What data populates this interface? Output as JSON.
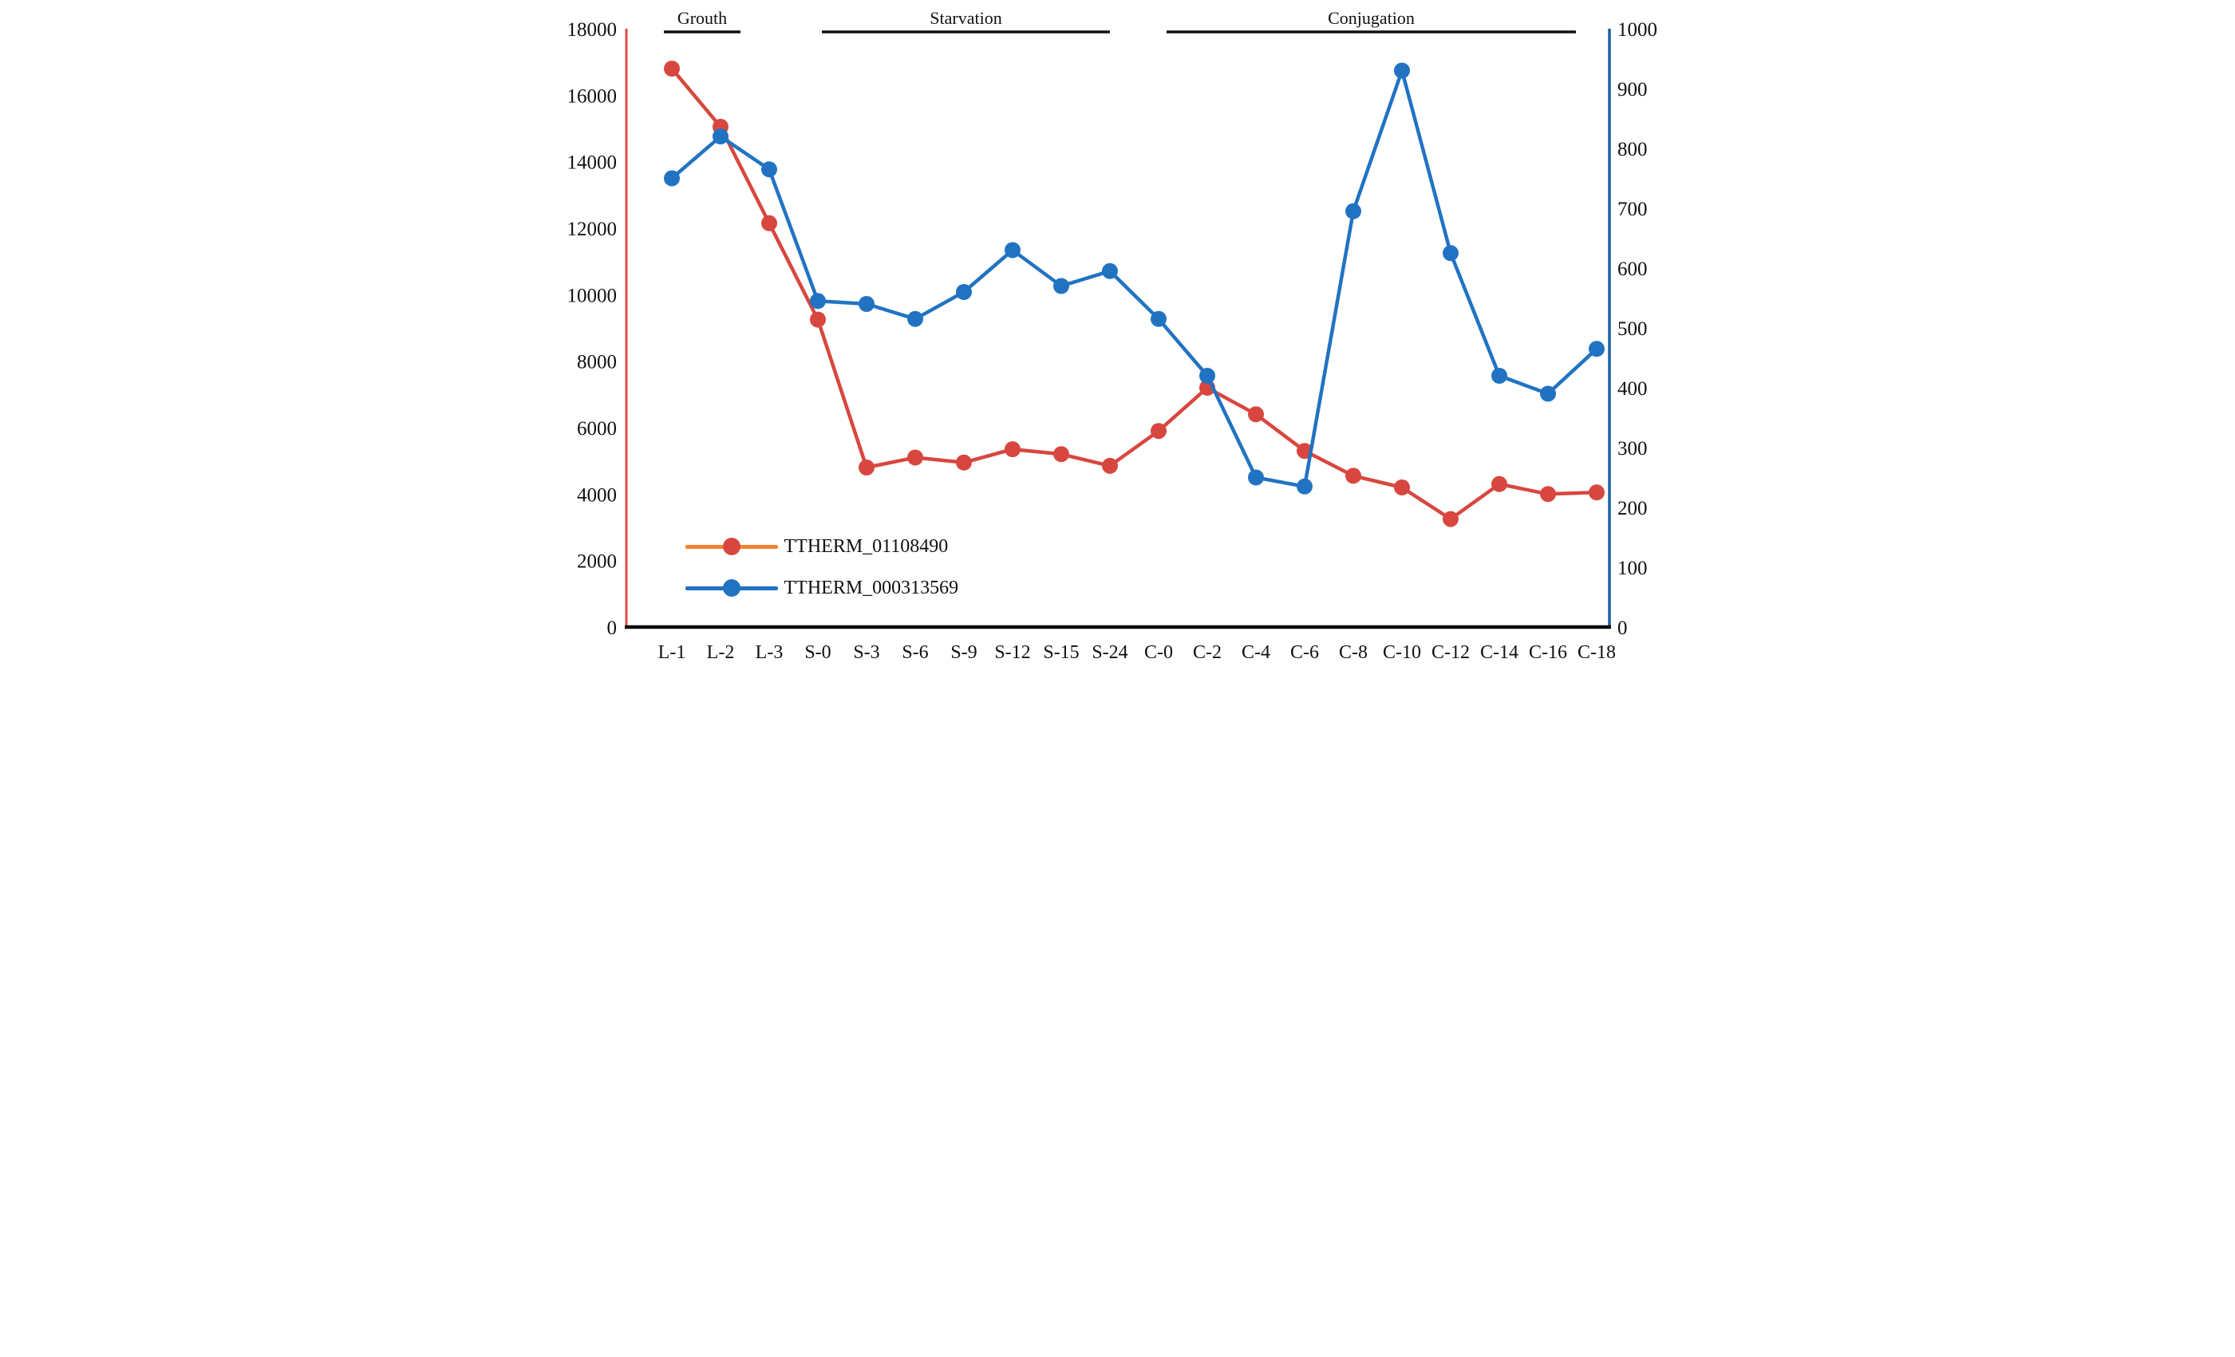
{
  "chart_data": {
    "type": "line",
    "title": "",
    "xlabel": "",
    "ylabel_left": "",
    "ylabel_right": "",
    "grid": false,
    "legend_position": "inside-bottom-left",
    "categories": [
      "L-1",
      "L-2",
      "L-3",
      "S-0",
      "S-3",
      "S-6",
      "S-9",
      "S-12",
      "S-15",
      "S-24",
      "C-0",
      "C-2",
      "C-4",
      "C-6",
      "C-8",
      "C-10",
      "C-12",
      "C-14",
      "C-16",
      "C-18"
    ],
    "series": [
      {
        "name": "TTHERM_01108490",
        "axis": "left",
        "line_color": "#d8473f",
        "marker_color": "#d8473f",
        "legend_line_color": "#f28430",
        "values": [
          16800,
          15050,
          12150,
          9250,
          4800,
          5100,
          4950,
          5350,
          5200,
          4850,
          5900,
          7200,
          6400,
          5300,
          4550,
          4200,
          3250,
          4300,
          4000,
          4050
        ]
      },
      {
        "name": "TTHERM_000313569",
        "axis": "right",
        "line_color": "#2173c2",
        "marker_color": "#2173c2",
        "legend_line_color": "#2173c2",
        "values": [
          750,
          820,
          765,
          545,
          540,
          515,
          560,
          630,
          570,
          595,
          515,
          420,
          250,
          235,
          695,
          930,
          625,
          420,
          390,
          465
        ]
      }
    ],
    "left_axis": {
      "min": 0,
      "max": 18000,
      "step": 2000,
      "color": "#e14b45",
      "ticks": [
        "18000",
        "16000",
        "14000",
        "12000",
        "10000",
        "8000",
        "6000",
        "4000",
        "2000",
        "0"
      ]
    },
    "right_axis": {
      "min": 0,
      "max": 1000,
      "step": 100,
      "color": "#1c5fa6",
      "ticks": [
        "1000",
        "900",
        "800",
        "700",
        "600",
        "500",
        "400",
        "300",
        "200",
        "100",
        "0"
      ]
    },
    "bottom_axis_color": "#0b0b0b",
    "phases": [
      {
        "label": "Grouth",
        "from": "L-1",
        "to": "L-2"
      },
      {
        "label": "Starvation",
        "from": "S-0",
        "to": "S-24"
      },
      {
        "label": "Conjugation",
        "from": "C-0",
        "to": "C-16"
      }
    ]
  }
}
